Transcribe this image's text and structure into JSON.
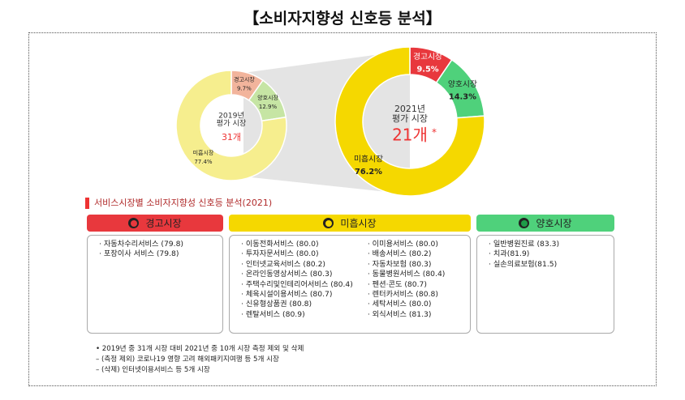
{
  "title": "【소비자지향성 신호등 분석】",
  "chart_data": [
    {
      "type": "donut",
      "categories": [
        "경고시장",
        "양호시장",
        "미흡시장"
      ],
      "values": [
        9.7,
        12.9,
        77.4
      ],
      "value_labels": [
        "9.7%",
        "12.9%",
        "77.4%"
      ],
      "colors": [
        "#f2b49c",
        "#c6e5a4",
        "#f6ee8e"
      ],
      "center_year": "2019년",
      "center_label": "평가 시장",
      "center_count": "31개"
    },
    {
      "type": "donut",
      "categories": [
        "경고시장",
        "양호시장",
        "미흡시장"
      ],
      "values": [
        9.5,
        14.3,
        76.2
      ],
      "value_labels": [
        "9.5%",
        "14.3%",
        "76.2%"
      ],
      "colors": [
        "#e8383d",
        "#4fd17b",
        "#f5d800"
      ],
      "center_year": "2021년",
      "center_label": "평가 시장",
      "center_count": "21개",
      "center_mark": "*"
    }
  ],
  "section_title": "서비스시장별 소비자지향성 신호등 분석(2021)",
  "panels": [
    {
      "title": "경고시장",
      "color": "#e8383d",
      "lamp": "#e8383d",
      "columns": [
        [
          "· 자동차수리서비스 (79.8)",
          "· 포장이사 서비스 (79.8)"
        ]
      ]
    },
    {
      "title": "미흡시장",
      "color": "#f5d800",
      "lamp": "#f5d800",
      "columns": [
        [
          "· 이동전화서비스 (80.0)",
          "· 투자자문서비스 (80.0)",
          "· 인터넷교육서비스 (80.2)",
          "· 온라인동영상서비스 (80.3)",
          "· 주택수리및인테리어서비스 (80.4)",
          "· 체육시설이용서비스 (80.7)",
          "· 신유형상품권 (80.8)",
          "· 렌탈서비스 (80.9)"
        ],
        [
          "· 이미용서비스 (80.0)",
          "· 배송서비스 (80.2)",
          "· 자동차보험 (80.3)",
          "· 동물병원서비스 (80.4)",
          "· 펜션·콘도 (80.7)",
          "· 렌터카서비스 (80.8)",
          "· 세탁서비스 (80.0)",
          "· 외식서비스 (81.3)"
        ]
      ]
    },
    {
      "title": "양호시장",
      "color": "#4fd17b",
      "lamp": "#1e9c48",
      "columns": [
        [
          "· 일반병원진료 (83.3)",
          "· 치과(81.9)",
          "· 실손의료보험(81.5)"
        ]
      ]
    }
  ],
  "notes": [
    "•   2019년 중 31개 시장 대비 2021년 중 10개 시장 측정 제외 및 삭제",
    "– (측정 제외) 코로나19 영향 고려 해외패키지여행 등 5개 시장",
    "– (삭제) 인터넷이용서비스 등 5개 시장"
  ]
}
